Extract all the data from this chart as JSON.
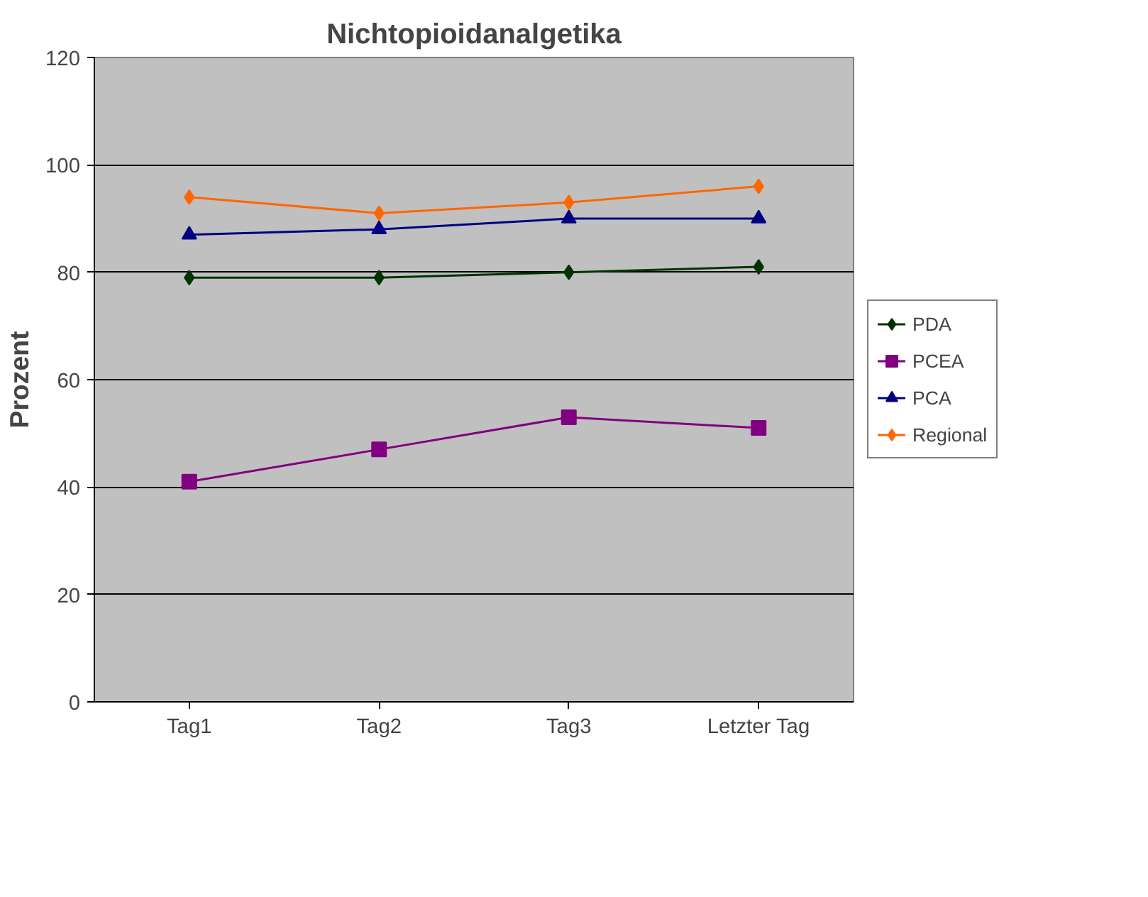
{
  "chart_data": {
    "type": "line",
    "title": "Nichtopioidanalgetika",
    "ylabel": "Prozent",
    "categories": [
      "Tag1",
      "Tag2",
      "Tag3",
      "Letzter Tag"
    ],
    "series": [
      {
        "name": "PDA",
        "color": "#003300",
        "marker": "diamond",
        "values": [
          79,
          79,
          80,
          81
        ]
      },
      {
        "name": "PCEA",
        "color": "#800080",
        "marker": "square",
        "values": [
          41,
          47,
          53,
          51
        ]
      },
      {
        "name": "PCA",
        "color": "#000080",
        "marker": "triangle",
        "values": [
          87,
          88,
          90,
          90
        ]
      },
      {
        "name": "Regional",
        "color": "#ff6600",
        "marker": "diamond",
        "values": [
          94,
          91,
          93,
          96
        ]
      }
    ],
    "ylim": [
      0,
      120
    ],
    "yticks": [
      0,
      20,
      40,
      60,
      80,
      100,
      120
    ],
    "grid": "y",
    "legend": "right"
  }
}
